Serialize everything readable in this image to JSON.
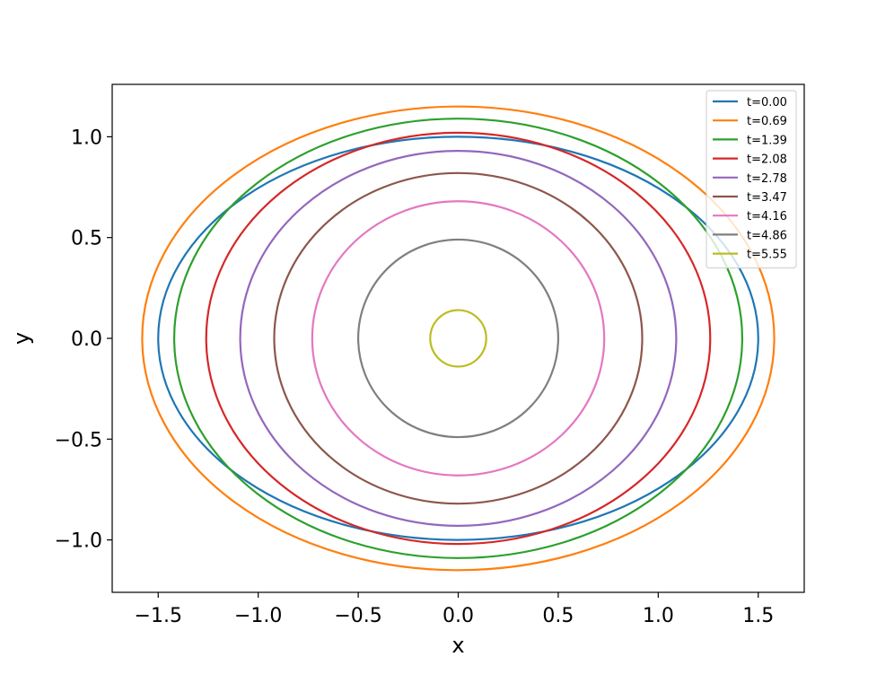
{
  "chart_data": {
    "type": "line",
    "xlabel": "x",
    "ylabel": "y",
    "xlim": [
      -1.73,
      1.73
    ],
    "ylim": [
      -1.26,
      1.26
    ],
    "xticks": [
      -1.5,
      -1.0,
      -0.5,
      0.0,
      0.5,
      1.0,
      1.5
    ],
    "yticks": [
      -1.0,
      -0.5,
      0.0,
      0.5,
      1.0
    ],
    "xtick_labels": [
      "−1.5",
      "−1.0",
      "−0.5",
      "0.0",
      "0.5",
      "1.0",
      "1.5"
    ],
    "ytick_labels": [
      "−1.0",
      "−0.5",
      "0.0",
      "0.5",
      "1.0"
    ],
    "grid": false,
    "legend_position": "top-right",
    "series": [
      {
        "name": "t=0.00",
        "color": "#1f77b4",
        "center": [
          0,
          0
        ],
        "rx": 1.5,
        "ry": 1.0
      },
      {
        "name": "t=0.69",
        "color": "#ff7f0e",
        "center": [
          0,
          0
        ],
        "rx": 1.58,
        "ry": 1.15
      },
      {
        "name": "t=1.39",
        "color": "#2ca02c",
        "center": [
          0,
          0
        ],
        "rx": 1.42,
        "ry": 1.09
      },
      {
        "name": "t=2.08",
        "color": "#d62728",
        "center": [
          0,
          0
        ],
        "rx": 1.26,
        "ry": 1.02
      },
      {
        "name": "t=2.78",
        "color": "#9467bd",
        "center": [
          0,
          0
        ],
        "rx": 1.09,
        "ry": 0.93
      },
      {
        "name": "t=3.47",
        "color": "#8c564b",
        "center": [
          0,
          0
        ],
        "rx": 0.92,
        "ry": 0.82
      },
      {
        "name": "t=4.16",
        "color": "#e377c2",
        "center": [
          0,
          0
        ],
        "rx": 0.73,
        "ry": 0.68
      },
      {
        "name": "t=4.86",
        "color": "#7f7f7f",
        "center": [
          0,
          0
        ],
        "rx": 0.5,
        "ry": 0.49
      },
      {
        "name": "t=5.55",
        "color": "#bcbd22",
        "center": [
          0,
          0
        ],
        "rx": 0.14,
        "ry": 0.14
      }
    ]
  }
}
